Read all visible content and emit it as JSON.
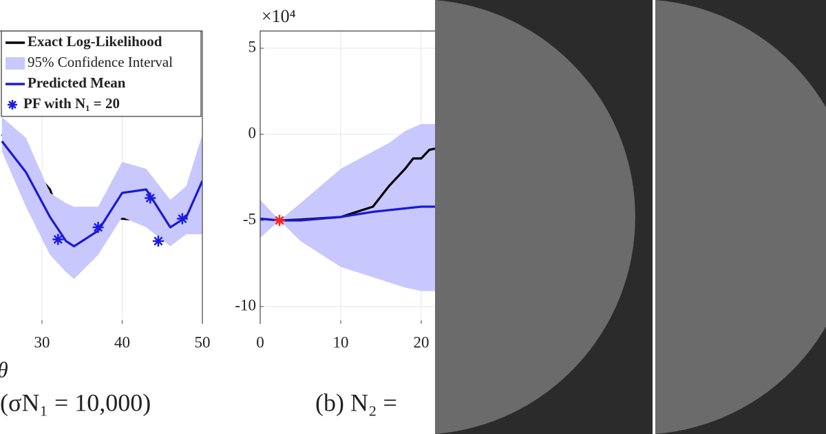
{
  "chart_data": [
    {
      "type": "line",
      "x_label": "θ",
      "caption": "(σN₁ = 10,000)",
      "xlim": [
        0,
        50
      ],
      "ylim": [
        -11,
        6
      ],
      "xticks": [
        30,
        40,
        50
      ],
      "grid": true,
      "legend": "upper left",
      "x": [
        25,
        28,
        31,
        33,
        34,
        37,
        40,
        43,
        46,
        48,
        50
      ],
      "series": [
        {
          "name": "Exact Log-Likelihood",
          "color": "#000000",
          "values": [
            0,
            -1.6,
            -3.2,
            -5.8,
            -5,
            -4.7,
            -4.9,
            -5,
            -5.1,
            -5.2,
            -5.2
          ]
        },
        {
          "name": "95% Confidence Interval",
          "color": "#c8c8ff",
          "values": [
            1,
            -0.2,
            -3.4,
            -4,
            -4.2,
            -4.2,
            -1.6,
            -2,
            -3.8,
            -3,
            0
          ],
          "lower": [
            -1,
            -4.2,
            -7,
            -8,
            -8.4,
            -7,
            -4.8,
            -5.4,
            -6.5,
            -5.8,
            -5.8
          ]
        },
        {
          "name": "Predicted Mean",
          "color": "#1a1ad6",
          "values": [
            -0.4,
            -2.2,
            -4.8,
            -6.2,
            -6.5,
            -5.6,
            -3.4,
            -3.2,
            -5.4,
            -4.8,
            -2.7
          ]
        },
        {
          "name": "PF with N₁ = 20",
          "color": "#1a1ae6",
          "marker": "asterisk",
          "x": [
            32,
            37,
            43.5,
            44.5,
            47.5
          ],
          "values": [
            -6.1,
            -5.4,
            -3.7,
            -6.2,
            -4.9
          ]
        }
      ]
    },
    {
      "type": "line",
      "caption": "(b) N₂ =",
      "y_multiplier": "×10⁴",
      "xlim": [
        0,
        25
      ],
      "ylim": [
        -11,
        6
      ],
      "xticks": [
        0,
        10,
        20
      ],
      "yticks": [
        -10,
        -5,
        0,
        5
      ],
      "grid": true,
      "x": [
        0,
        2.4,
        5,
        10,
        14,
        16,
        18,
        19,
        20,
        21,
        22
      ],
      "series": [
        {
          "color": "#c8c8ff",
          "values": [
            -3.8,
            -5,
            -4,
            -2,
            -1,
            -0.5,
            0.2,
            0.4,
            0.6,
            0.6,
            0.6
          ],
          "lower": [
            -6,
            -5,
            -6.2,
            -7.7,
            -8.3,
            -8.6,
            -8.9,
            -9,
            -9.1,
            -9.1,
            -9.1
          ]
        },
        {
          "color": "#000000",
          "values": [
            -4.9,
            -5,
            -4.95,
            -4.8,
            -4.2,
            -3,
            -2,
            -1.4,
            -1.4,
            -0.9,
            -0.8
          ]
        },
        {
          "color": "#1a1ad6",
          "values": [
            -4.9,
            -5,
            -5,
            -4.8,
            -4.5,
            -4.4,
            -4.3,
            -4.25,
            -4.2,
            -4.2,
            -4.2
          ]
        },
        {
          "color": "#ff2020",
          "marker": "asterisk",
          "x": [
            2.4
          ],
          "values": [
            -5
          ]
        }
      ]
    }
  ]
}
